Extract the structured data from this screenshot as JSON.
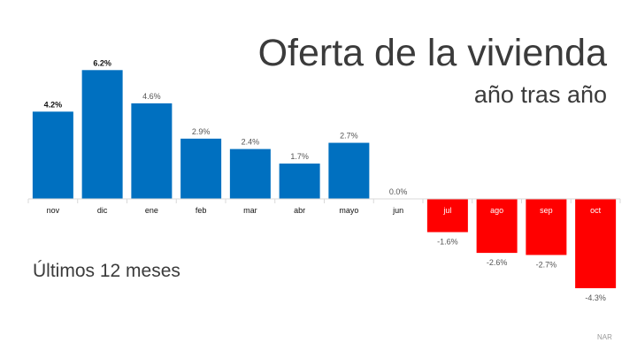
{
  "chart_data": {
    "type": "bar",
    "title": "Oferta de la vivienda",
    "subtitle": "año tras año",
    "annotation": "Últimos 12 meses",
    "source": "NAR",
    "categories": [
      "nov",
      "dic",
      "ene",
      "feb",
      "mar",
      "abr",
      "mayo",
      "jun",
      "jul",
      "ago",
      "sep",
      "oct"
    ],
    "values": [
      4.2,
      6.2,
      4.6,
      2.9,
      2.4,
      1.7,
      2.7,
      0.0,
      -1.6,
      -2.6,
      -2.7,
      -4.3
    ],
    "value_labels": [
      "4.2%",
      "6.2%",
      "4.6%",
      "2.9%",
      "2.4%",
      "1.7%",
      "2.7%",
      "0.0%",
      "-1.6%",
      "-2.6%",
      "-2.7%",
      "-4.3%"
    ],
    "ylim": [
      -4.3,
      6.2
    ],
    "grid": false,
    "colors": {
      "positive": "#0070c0",
      "negative": "#ff0000",
      "axis": "#d9d9d9"
    }
  }
}
